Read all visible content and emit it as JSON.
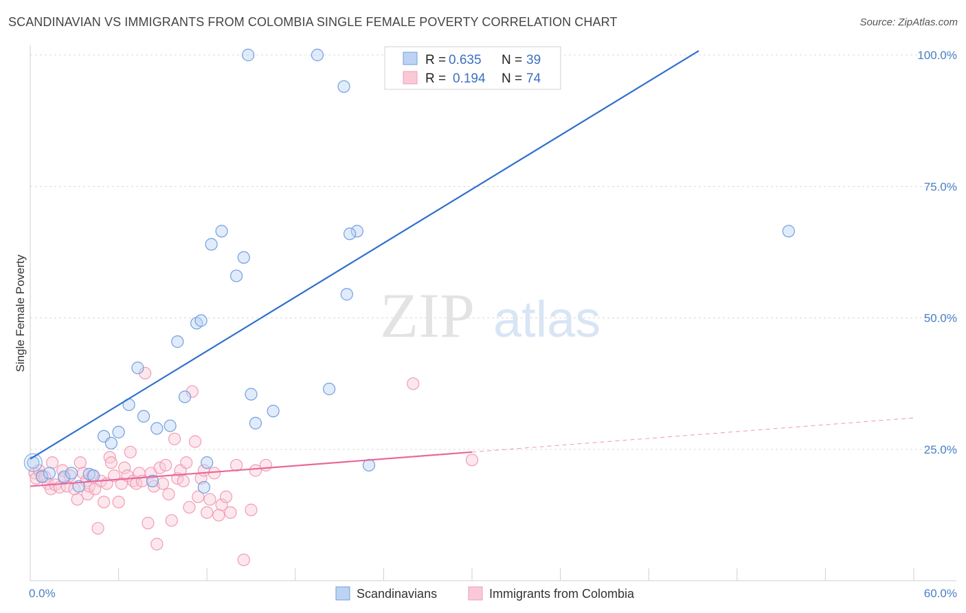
{
  "title": "SCANDINAVIAN VS IMMIGRANTS FROM COLOMBIA SINGLE FEMALE POVERTY CORRELATION CHART",
  "source": "Source: ZipAtlas.com",
  "colors": {
    "blue": "#6f9fe0",
    "blue_line": "#2f6fcc",
    "pink": "#f29bb6",
    "pink_line": "#e8679a",
    "grid": "#d8d8d8",
    "axis_text": "#4a7fc1"
  },
  "chart_data": {
    "type": "scatter",
    "title": "SCANDINAVIAN VS IMMIGRANTS FROM COLOMBIA SINGLE FEMALE POVERTY CORRELATION CHART",
    "xlabel": "",
    "ylabel": "Single Female Poverty",
    "xlim": [
      0,
      60
    ],
    "ylim": [
      0,
      103
    ],
    "x_tick_labels": [
      "0.0%",
      "60.0%"
    ],
    "y_ticks": [
      25,
      50,
      75,
      100
    ],
    "y_tick_labels": [
      "25.0%",
      "50.0%",
      "75.0%",
      "100.0%"
    ],
    "grid": true,
    "legend_placement": "top-center",
    "legend": [
      {
        "r_label": "R =",
        "r": "0.635",
        "n_label": "N =",
        "n": "39"
      },
      {
        "r_label": "R =",
        "r": "0.194",
        "n_label": "N =",
        "n": "74"
      }
    ],
    "series": [
      {
        "name": "Scandinavians",
        "trend": {
          "x": [
            0,
            45.4
          ],
          "y": [
            23.2,
            100.8
          ]
        },
        "x": [
          0.2,
          0.8,
          1.3,
          2.3,
          2.8,
          3.3,
          4.0,
          4.3,
          5.0,
          5.5,
          6.0,
          6.7,
          7.3,
          7.7,
          8.3,
          8.6,
          9.5,
          10.0,
          10.5,
          11.3,
          11.6,
          12.0,
          12.3,
          11.8,
          13.0,
          14.0,
          14.5,
          15.0,
          15.3,
          14.8,
          16.5,
          19.5,
          22.2,
          21.3,
          20.3,
          21.5,
          21.7,
          23.0,
          51.5
        ],
        "y": [
          22.5,
          19.8,
          20.5,
          19.8,
          20.5,
          18.0,
          20.3,
          20.0,
          27.5,
          26.2,
          28.3,
          33.5,
          40.5,
          31.3,
          19.0,
          29.0,
          29.5,
          45.5,
          35.0,
          49.0,
          49.5,
          22.5,
          64.0,
          17.8,
          66.5,
          58.0,
          61.5,
          35.5,
          30.0,
          100.0,
          32.3,
          100.0,
          66.5,
          94.0,
          36.5,
          54.5,
          66.0,
          22.0,
          66.5
        ]
      },
      {
        "name": "Immigrants from Colombia",
        "trend": {
          "x": [
            0,
            30
          ],
          "y": [
            18.0,
            24.5
          ]
        },
        "trend_dashed": {
          "x": [
            30,
            60
          ],
          "y": [
            24.5,
            31.0
          ]
        },
        "x": [
          0.3,
          0.4,
          0.6,
          0.8,
          1.0,
          1.2,
          1.4,
          1.5,
          1.7,
          2.0,
          2.2,
          2.3,
          2.5,
          2.7,
          3.0,
          3.2,
          3.4,
          3.6,
          3.8,
          3.9,
          4.0,
          4.2,
          4.4,
          4.6,
          4.8,
          5.0,
          5.2,
          5.4,
          5.5,
          5.7,
          6.0,
          6.2,
          6.4,
          6.6,
          6.8,
          7.0,
          7.2,
          7.4,
          7.6,
          7.8,
          8.0,
          8.2,
          8.4,
          8.6,
          8.8,
          9.0,
          9.2,
          9.4,
          9.6,
          9.8,
          10.0,
          10.2,
          10.4,
          10.6,
          10.8,
          11.0,
          11.2,
          11.4,
          11.6,
          11.8,
          12.0,
          12.2,
          12.5,
          12.8,
          13.0,
          13.3,
          13.6,
          14.0,
          14.5,
          15.0,
          15.3,
          16.0,
          26.0,
          30.0
        ],
        "y": [
          20.5,
          19.5,
          21.0,
          20.0,
          19.8,
          18.5,
          17.5,
          22.5,
          18.3,
          17.8,
          21.0,
          19.5,
          18.0,
          20.0,
          17.5,
          15.5,
          22.5,
          20.5,
          19.0,
          16.5,
          18.0,
          20.0,
          17.5,
          10.0,
          19.0,
          15.0,
          18.5,
          23.5,
          22.5,
          20.0,
          15.0,
          18.5,
          21.5,
          20.0,
          24.5,
          19.0,
          18.5,
          20.5,
          19.0,
          39.5,
          11.0,
          20.5,
          18.0,
          7.0,
          21.5,
          18.5,
          22.0,
          16.5,
          11.5,
          27.0,
          19.5,
          21.0,
          19.0,
          22.5,
          14.0,
          36.0,
          26.5,
          16.0,
          19.5,
          21.0,
          13.0,
          15.5,
          20.5,
          12.5,
          14.5,
          16.0,
          13.0,
          22.0,
          4.0,
          13.5,
          21.0,
          22.0,
          37.5,
          23.0
        ]
      }
    ]
  },
  "bottom_legend": [
    "Scandinavians",
    "Immigrants from Colombia"
  ],
  "watermark": {
    "zip": "ZIP",
    "atlas": "atlas"
  }
}
